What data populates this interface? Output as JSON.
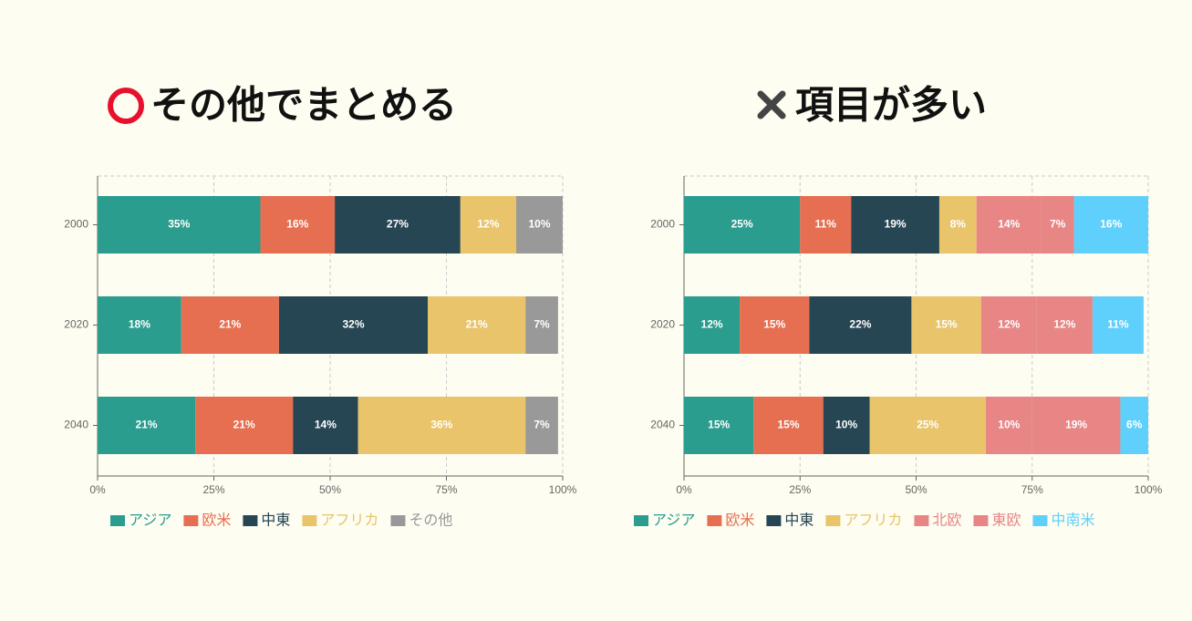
{
  "chart_data": [
    {
      "type": "stacked-barh",
      "title": "その他でまとめる",
      "categories": [
        "2000",
        "2020",
        "2040"
      ],
      "series": [
        {
          "name": "アジア",
          "color": "#2a9d8f",
          "values": [
            35,
            18,
            21
          ],
          "value_labels": [
            "35%",
            "18%",
            "21%"
          ]
        },
        {
          "name": "欧米",
          "color": "#e76f51",
          "values": [
            16,
            21,
            21
          ],
          "value_labels": [
            "16%",
            "21%",
            "21%"
          ]
        },
        {
          "name": "中東",
          "color": "#264653",
          "values": [
            27,
            32,
            14
          ],
          "value_labels": [
            "27%",
            "32%",
            "14%"
          ]
        },
        {
          "name": "アフリカ",
          "color": "#e9c46a",
          "values": [
            12,
            21,
            36
          ],
          "value_labels": [
            "12%",
            "21%",
            "36%"
          ]
        },
        {
          "name": "その他",
          "color": "#999999",
          "values": [
            10,
            7,
            7
          ],
          "value_labels": [
            "10%",
            "7%",
            "7%"
          ]
        }
      ],
      "xlim": [
        0,
        100
      ],
      "xticks": [
        {
          "value": 0,
          "label": "0%"
        },
        {
          "value": 25,
          "label": "25%"
        },
        {
          "value": 50,
          "label": "50%"
        },
        {
          "value": 75,
          "label": "75%"
        },
        {
          "value": 100,
          "label": "100%"
        }
      ],
      "grid": true,
      "legend": "bottom"
    },
    {
      "type": "stacked-barh",
      "title": "項目が多い",
      "categories": [
        "2000",
        "2020",
        "2040"
      ],
      "series": [
        {
          "name": "アジア",
          "color": "#2a9d8f",
          "values": [
            25,
            12,
            15
          ],
          "value_labels": [
            "25%",
            "12%",
            "15%"
          ]
        },
        {
          "name": "欧米",
          "color": "#e76f51",
          "values": [
            11,
            15,
            15
          ],
          "value_labels": [
            "11%",
            "15%",
            "15%"
          ]
        },
        {
          "name": "中東",
          "color": "#264653",
          "values": [
            19,
            22,
            10
          ],
          "value_labels": [
            "19%",
            "22%",
            "10%"
          ]
        },
        {
          "name": "アフリカ",
          "color": "#e9c46a",
          "values": [
            8,
            15,
            25
          ],
          "value_labels": [
            "8%",
            "15%",
            "25%"
          ]
        },
        {
          "name": "北欧",
          "color": "#e88585",
          "values": [
            14,
            12,
            10
          ],
          "value_labels": [
            "14%",
            "12%",
            "10%"
          ]
        },
        {
          "name": "東欧",
          "color": "#e88585",
          "values": [
            7,
            12,
            19
          ],
          "value_labels": [
            "7%",
            "12%",
            "19%"
          ]
        },
        {
          "name": "中南米",
          "color": "#5fd0fb",
          "values": [
            16,
            11,
            6
          ],
          "value_labels": [
            "16%",
            "11%",
            "6%"
          ]
        }
      ],
      "xlim": [
        0,
        100
      ],
      "xticks": [
        {
          "value": 0,
          "label": "0%"
        },
        {
          "value": 25,
          "label": "25%"
        },
        {
          "value": 50,
          "label": "50%"
        },
        {
          "value": 75,
          "label": "75%"
        },
        {
          "value": 100,
          "label": "100%"
        }
      ],
      "grid": true,
      "legend": "bottom"
    }
  ]
}
